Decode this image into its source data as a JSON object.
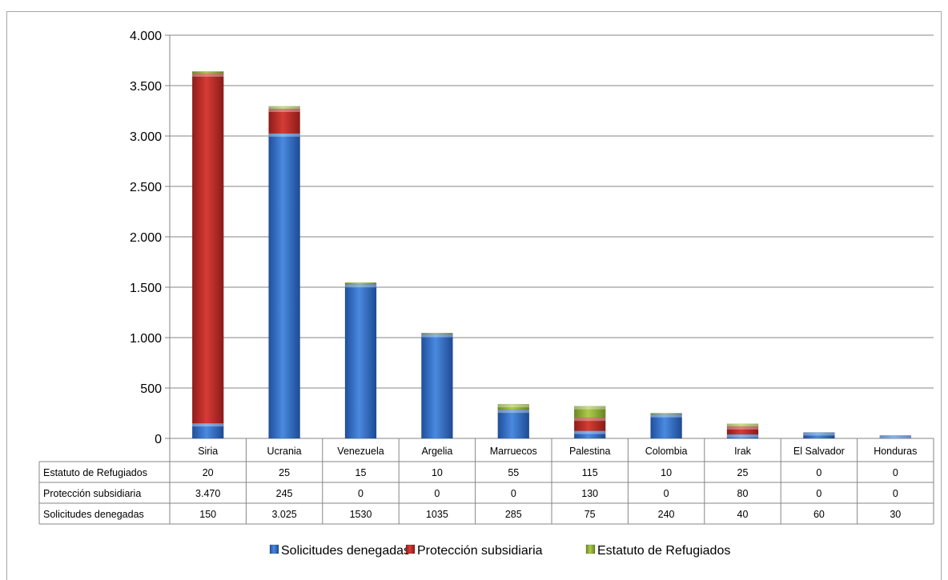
{
  "chart_data": {
    "type": "bar",
    "stacked": true,
    "categories": [
      "Siria",
      "Ucrania",
      "Venezuela",
      "Argelia",
      "Marruecos",
      "Palestina",
      "Colombia",
      "Irak",
      "El Salvador",
      "Honduras"
    ],
    "ylim": [
      0,
      4000
    ],
    "yticks": [
      {
        "value": 0,
        "label": "0"
      },
      {
        "value": 500,
        "label": "500"
      },
      {
        "value": 1000,
        "label": "1.000"
      },
      {
        "value": 1500,
        "label": "1.500"
      },
      {
        "value": 2000,
        "label": "2.000"
      },
      {
        "value": 2500,
        "label": "2.500"
      },
      {
        "value": 3000,
        "label": "3.000"
      },
      {
        "value": 3500,
        "label": "3.500"
      },
      {
        "value": 4000,
        "label": "4.000"
      }
    ],
    "grid": true,
    "legend_position": "bottom",
    "series": [
      {
        "name": "Solicitudes denegadas",
        "color": "#3a78d4",
        "values": [
          150,
          3025,
          1530,
          1035,
          285,
          75,
          240,
          40,
          60,
          30
        ],
        "labels": [
          "150",
          "3.025",
          "1530",
          "1035",
          "285",
          "75",
          "240",
          "40",
          "60",
          "30"
        ]
      },
      {
        "name": "Protección subsidiaria",
        "color": "#c9302c",
        "values": [
          3470,
          245,
          0,
          0,
          0,
          130,
          0,
          80,
          0,
          0
        ],
        "labels": [
          "3.470",
          "245",
          "0",
          "0",
          "0",
          "130",
          "0",
          "80",
          "0",
          "0"
        ]
      },
      {
        "name": "Estatuto de Refugiados",
        "color": "#9bbb3c",
        "values": [
          20,
          25,
          15,
          10,
          55,
          115,
          10,
          25,
          0,
          0
        ],
        "labels": [
          "20",
          "25",
          "15",
          "10",
          "55",
          "115",
          "10",
          "25",
          "0",
          "0"
        ]
      }
    ],
    "table_row_order": [
      "Estatuto de Refugiados",
      "Protección subsidiaria",
      "Solicitudes denegadas"
    ]
  }
}
